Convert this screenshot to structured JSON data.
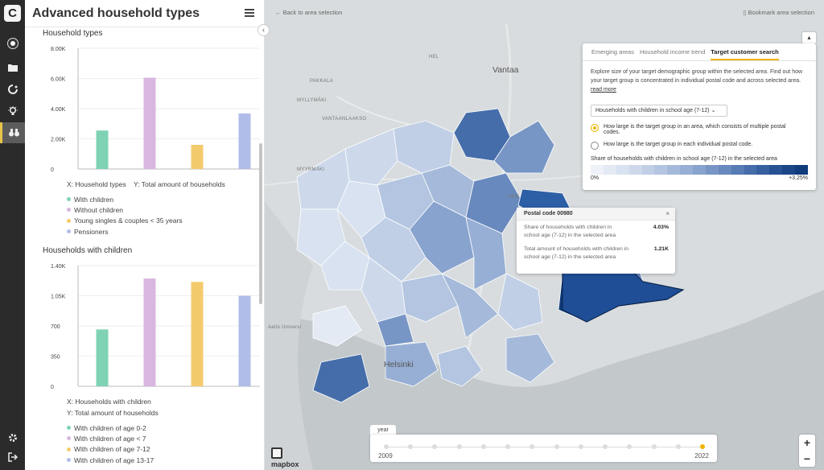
{
  "rail": {
    "logo": "C",
    "items": [
      {
        "name": "avatar"
      },
      {
        "name": "folder-icon"
      },
      {
        "name": "refresh-icon"
      },
      {
        "name": "lightbulb-icon"
      },
      {
        "name": "binoculars-icon"
      }
    ],
    "bottom": [
      {
        "name": "settings-icon"
      },
      {
        "name": "logout-icon"
      }
    ]
  },
  "panel": {
    "title": "Advanced household types",
    "chart1_section": "Household types",
    "chart1_xcaption": "X: Household types",
    "chart1_ycaption": "Y: Total amount of households",
    "chart2_section": "Households with children",
    "chart2_xcaption": "X: Households with children",
    "chart2_ycaption": "Y: Total amount of households"
  },
  "chart_data": [
    {
      "type": "bar",
      "title": "Household types",
      "xlabel": "Household types",
      "ylabel": "Total amount of households",
      "categories": [
        "With children",
        "Without children",
        "Young singles & couples < 35 years",
        "Pensioners"
      ],
      "values": [
        2550,
        6050,
        1600,
        3680
      ],
      "colors": [
        "#7fd3b4",
        "#d8b7e0",
        "#f4cb6c",
        "#b1bde9"
      ],
      "ylim": [
        0,
        8000
      ],
      "yticks": [
        "0",
        "2.00K",
        "4.00K",
        "6.00K",
        "8.00K"
      ],
      "grid": true
    },
    {
      "type": "bar",
      "title": "Households with children",
      "xlabel": "Households with children",
      "ylabel": "Total amount of households",
      "categories": [
        "With children of age 0-2",
        "With children of age < 7",
        "With children of age 7-12",
        "With children of age 13-17"
      ],
      "values": [
        660,
        1250,
        1210,
        1050
      ],
      "colors": [
        "#7fd3b4",
        "#d8b7e0",
        "#f4cb6c",
        "#b1bde9"
      ],
      "ylim": [
        0,
        1400
      ],
      "yticks": [
        "0",
        "350",
        "700",
        "1.05K",
        "1.40K"
      ],
      "grid": true
    }
  ],
  "map": {
    "back_link": "Back to area selection",
    "bookmark_link": "Bookmark area selection",
    "labels": {
      "vantaa": "Vantaa",
      "hel": "HEL",
      "helsinki": "Helsinki",
      "pakkala": "PAKKALA",
      "myllymaki": "MYLLYMÄKI",
      "vantaanlaakso": "VANTAANLAAKSO",
      "myyrmaki": "MYYRMÄKI",
      "hem": "HEM",
      "aalto": "Aalto Universi"
    },
    "mapbox": "mapbox",
    "zoom_in": "+",
    "zoom_out": "−"
  },
  "infobox": {
    "tabs": [
      "Emerging areas",
      "Household income trend",
      "Target customer search"
    ],
    "description": "Explore size of your target demographic group within the selected area. Find out how your target group is concentrated in individual postal code and across selected area.",
    "read_more": "read more",
    "select_value": "Households with children in school age (7-12)",
    "radio1": "How large is the target group in an area, which consists of multiple postal codes.",
    "radio2": "How large is the target group in each individual postal code.",
    "scale_label": "Share of households with children in school age (7-12) in the selected area",
    "scale_min": "0%",
    "scale_max": "+3.25%",
    "scale_colors": [
      "#eef2f8",
      "#e3eaf4",
      "#d8e2f0",
      "#cdd9eb",
      "#c0cfe6",
      "#b3c5e0",
      "#a5bada",
      "#97afd4",
      "#88a3cd",
      "#7896c5",
      "#6889bd",
      "#567bb5",
      "#456daa",
      "#355f9f",
      "#265293",
      "#1a4687",
      "#103b7c"
    ]
  },
  "tooltip": {
    "title": "Postal code 00980",
    "close": "×",
    "row1_label": "Share of households with children in school age (7-12) in the selected area",
    "row1_value": "4.03%",
    "row2_label": "Total amount of households with children in school age (7-12) in the selected area",
    "row2_value": "1.21K"
  },
  "timeline": {
    "tab_label": "year",
    "start": "2009",
    "end": "2022",
    "years": 14,
    "active_index": 13
  }
}
